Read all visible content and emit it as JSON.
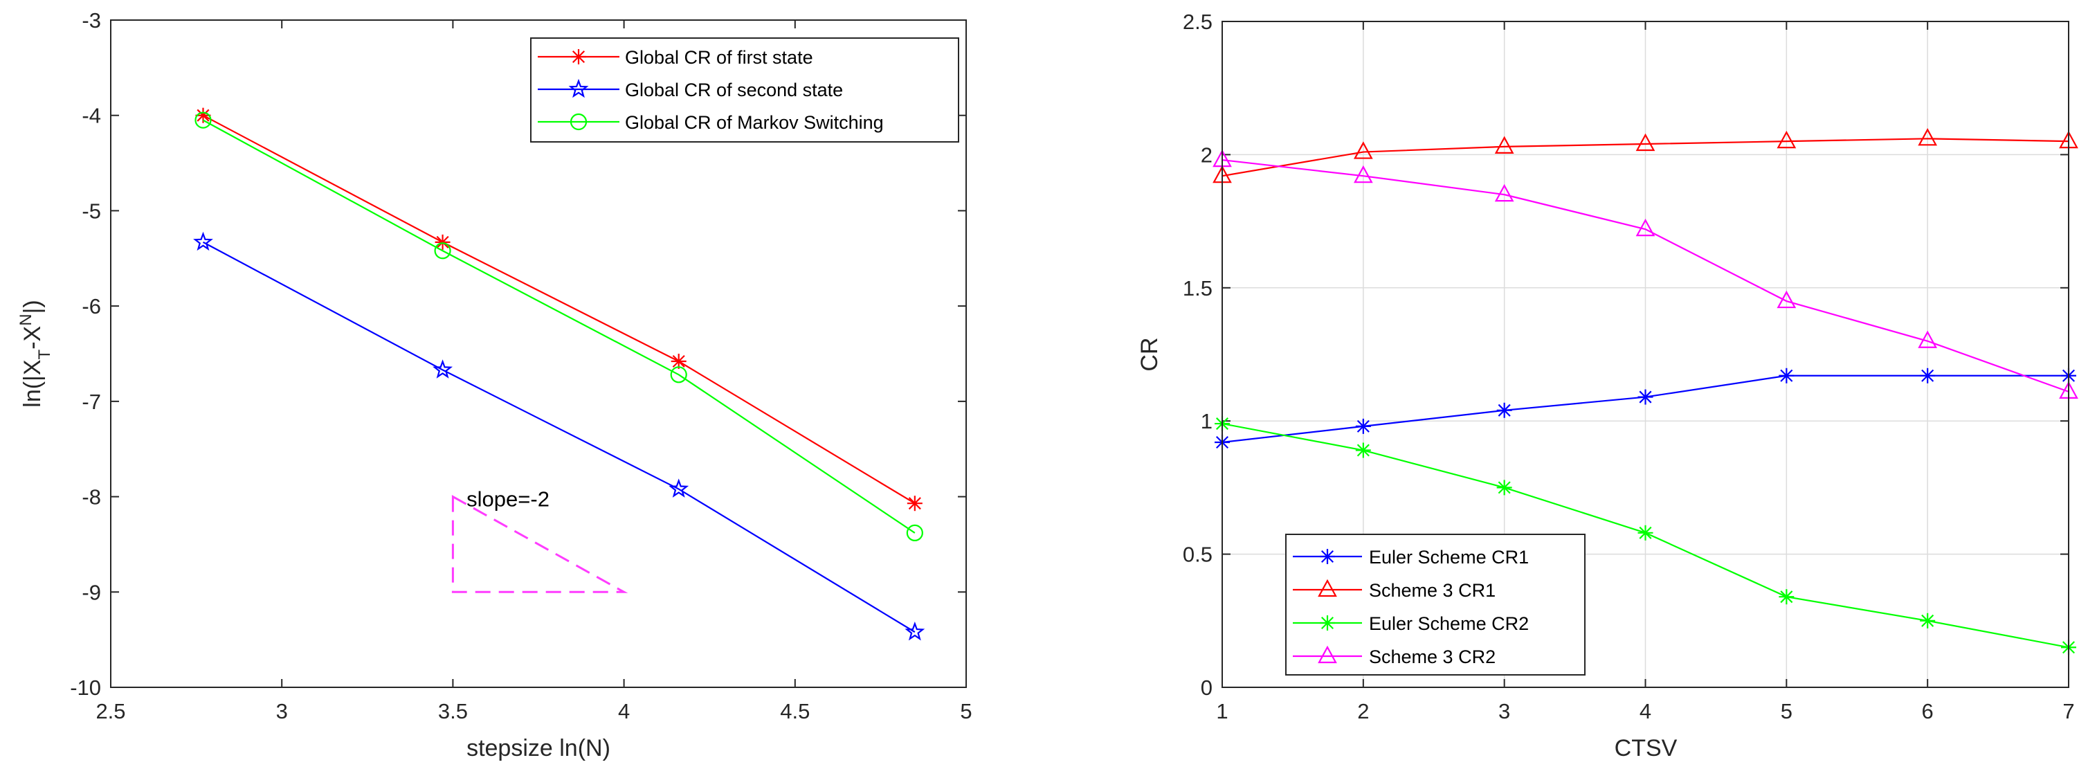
{
  "chart_data": [
    {
      "type": "line",
      "xlabel": "stepsize ln(N)",
      "ylabel": "ln(|X_T-X^N|)",
      "xlim": [
        2.5,
        5
      ],
      "ylim": [
        -10,
        -3
      ],
      "xticks": [
        2.5,
        3,
        3.5,
        4,
        4.5,
        5
      ],
      "yticks": [
        -10,
        -9,
        -8,
        -7,
        -6,
        -5,
        -4,
        -3
      ],
      "xtick_labels": [
        "2.5",
        "3",
        "3.5",
        "4",
        "4.5",
        "5"
      ],
      "ytick_labels": [
        "-10",
        "-9",
        "-8",
        "-7",
        "-6",
        "-5",
        "-4",
        "-3"
      ],
      "grid": false,
      "legend_position": "top-right",
      "x": [
        2.77,
        3.47,
        4.16,
        4.85
      ],
      "series": [
        {
          "name": "Global CR of first state",
          "color": "#ff0000",
          "marker": "asterisk",
          "values": [
            -4.0,
            -5.33,
            -6.58,
            -8.07
          ]
        },
        {
          "name": "Global CR of second state",
          "color": "#0000ff",
          "marker": "pentagram",
          "values": [
            -5.33,
            -6.67,
            -7.92,
            -9.42
          ]
        },
        {
          "name": "Global CR of Markov Switching",
          "color": "#00ff00",
          "marker": "circle",
          "values": [
            -4.05,
            -5.42,
            -6.72,
            -8.38
          ]
        }
      ],
      "annotation": {
        "text": "slope=-2",
        "color": "#ff3cff",
        "triangle": {
          "x": [
            3.5,
            3.5,
            4.0
          ],
          "y": [
            -8.0,
            -9.0,
            -9.0
          ]
        },
        "text_at": {
          "x": 3.54,
          "y": -8.1
        }
      }
    },
    {
      "type": "line",
      "xlabel": "CTSV",
      "ylabel": "CR",
      "xlim": [
        1,
        7
      ],
      "ylim": [
        0,
        2.5
      ],
      "xticks": [
        1,
        2,
        3,
        4,
        5,
        6,
        7
      ],
      "yticks": [
        0,
        0.5,
        1,
        1.5,
        2,
        2.5
      ],
      "xtick_labels": [
        "1",
        "2",
        "3",
        "4",
        "5",
        "6",
        "7"
      ],
      "ytick_labels": [
        "0",
        "0.5",
        "1",
        "1.5",
        "2",
        "2.5"
      ],
      "grid": true,
      "legend_position": "bottom-left",
      "x": [
        1,
        2,
        3,
        4,
        5,
        6,
        7
      ],
      "series": [
        {
          "name": "Euler Scheme CR1",
          "color": "#0000ff",
          "marker": "asterisk",
          "values": [
            0.92,
            0.98,
            1.04,
            1.09,
            1.17,
            1.17,
            1.17
          ]
        },
        {
          "name": "Scheme 3 CR1",
          "color": "#ff0000",
          "marker": "triangle",
          "values": [
            1.92,
            2.01,
            2.03,
            2.04,
            2.05,
            2.06,
            2.05
          ]
        },
        {
          "name": "Euler Scheme CR2",
          "color": "#00ff00",
          "marker": "asterisk",
          "values": [
            0.99,
            0.89,
            0.75,
            0.58,
            0.34,
            0.25,
            0.15
          ]
        },
        {
          "name": "Scheme 3 CR2",
          "color": "#ff00ff",
          "marker": "triangle",
          "values": [
            1.98,
            1.92,
            1.85,
            1.72,
            1.45,
            1.3,
            1.11
          ]
        }
      ]
    }
  ]
}
